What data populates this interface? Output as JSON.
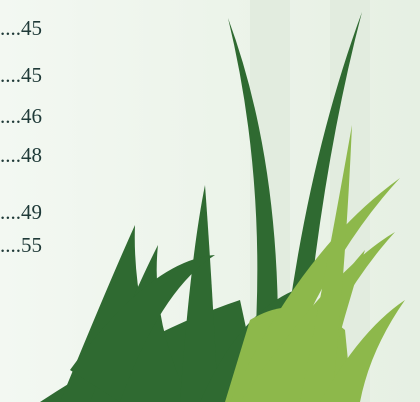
{
  "toc": {
    "entries": [
      {
        "page": "....45"
      },
      {
        "page": "....45"
      },
      {
        "page": "....46"
      },
      {
        "page": "....48"
      },
      {
        "page": "....49"
      },
      {
        "page": "....55"
      }
    ]
  }
}
